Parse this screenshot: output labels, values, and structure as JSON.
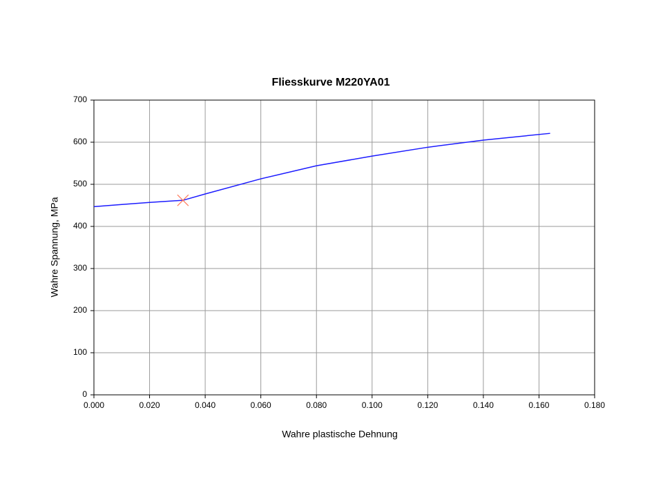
{
  "chart_data": {
    "type": "line",
    "title": "Fliesskurve M220YA01",
    "xlabel": "Wahre plastische Dehnung",
    "ylabel": "Wahre Spannung, MPa",
    "xlim": [
      0,
      0.18
    ],
    "ylim": [
      0,
      700
    ],
    "xticks": [
      {
        "value": 0,
        "label": "0.000"
      },
      {
        "value": 0.02,
        "label": "0.020"
      },
      {
        "value": 0.04,
        "label": "0.040"
      },
      {
        "value": 0.06,
        "label": "0.060"
      },
      {
        "value": 0.08,
        "label": "0.080"
      },
      {
        "value": 0.1,
        "label": "0.100"
      },
      {
        "value": 0.12,
        "label": "0.120"
      },
      {
        "value": 0.14,
        "label": "0.140"
      },
      {
        "value": 0.16,
        "label": "0.160"
      },
      {
        "value": 0.18,
        "label": "0.180"
      }
    ],
    "yticks": [
      0,
      100,
      200,
      300,
      400,
      500,
      600,
      700
    ],
    "grid": true,
    "series": [
      {
        "color": "#1a1aff",
        "x": [
          0,
          0.01,
          0.02,
          0.032,
          0.04,
          0.06,
          0.08,
          0.1,
          0.12,
          0.14,
          0.164
        ],
        "values": [
          447,
          452,
          457,
          462,
          477,
          513,
          544,
          567,
          588,
          605,
          621
        ]
      },
      {
        "color": "#ff7b5a",
        "marker": "x",
        "x": [
          0.032
        ],
        "values": [
          462
        ]
      }
    ]
  }
}
